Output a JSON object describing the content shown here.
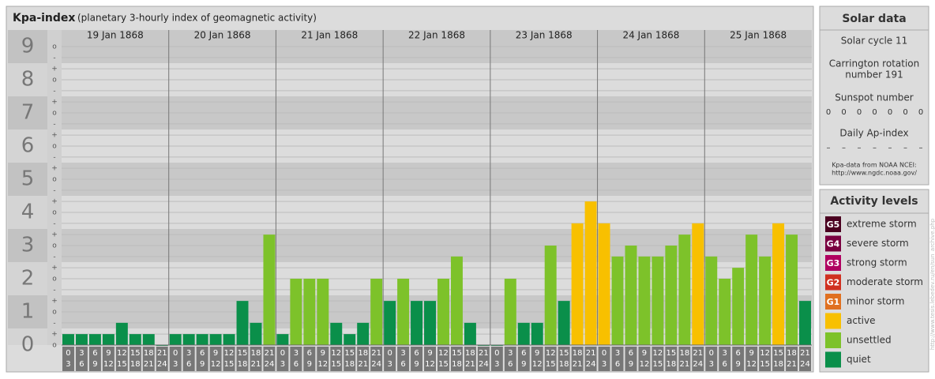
{
  "chart_data": {
    "type": "bar",
    "title": "Kpa-index",
    "subtitle": "(planetary 3-hourly index of geomagnetic activity)",
    "days": [
      "19 Jan 1868",
      "20 Jan 1868",
      "21 Jan 1868",
      "22 Jan 1868",
      "23 Jan 1868",
      "24 Jan 1868",
      "25 Jan 1868"
    ],
    "slot_starts": [
      0,
      3,
      6,
      9,
      12,
      15,
      18,
      21
    ],
    "slot_ends": [
      3,
      6,
      9,
      12,
      15,
      18,
      21,
      24
    ],
    "values": [
      0.33,
      0.33,
      0.33,
      0.33,
      0.67,
      0.33,
      0.33,
      0,
      0.33,
      0.33,
      0.33,
      0.33,
      0.33,
      1.33,
      0.67,
      3.33,
      0.33,
      2,
      2,
      2,
      0.67,
      0.33,
      0.67,
      2,
      1.33,
      2,
      1.33,
      1.33,
      2,
      2.67,
      0.67,
      0,
      0,
      2,
      0.67,
      0.67,
      3,
      1.33,
      3.67,
      4.33,
      3.67,
      2.67,
      3,
      2.67,
      2.67,
      3,
      3.33,
      3.67,
      2.67,
      2,
      2.33,
      3.33,
      2.67,
      3.67,
      3.33,
      1.33
    ],
    "bar_colors": [
      "#0a8f4a",
      "#0a8f4a",
      "#0a8f4a",
      "#0a8f4a",
      "#0a8f4a",
      "#0a8f4a",
      "#0a8f4a",
      "#0a8f4a",
      "#0a8f4a",
      "#0a8f4a",
      "#0a8f4a",
      "#0a8f4a",
      "#0a8f4a",
      "#0a8f4a",
      "#0a8f4a",
      "#7dc22a",
      "#0a8f4a",
      "#7dc22a",
      "#7dc22a",
      "#7dc22a",
      "#0a8f4a",
      "#0a8f4a",
      "#0a8f4a",
      "#7dc22a",
      "#0a8f4a",
      "#7dc22a",
      "#0a8f4a",
      "#0a8f4a",
      "#7dc22a",
      "#7dc22a",
      "#0a8f4a",
      "#0a8f4a",
      "#0a8f4a",
      "#7dc22a",
      "#0a8f4a",
      "#0a8f4a",
      "#7dc22a",
      "#0a8f4a",
      "#f8c000",
      "#f8c000",
      "#f8c000",
      "#7dc22a",
      "#7dc22a",
      "#7dc22a",
      "#7dc22a",
      "#7dc22a",
      "#7dc22a",
      "#f8c000",
      "#7dc22a",
      "#7dc22a",
      "#7dc22a",
      "#7dc22a",
      "#7dc22a",
      "#f8c000",
      "#7dc22a",
      "#0a8f4a"
    ],
    "ylim": [
      0,
      9.5
    ],
    "yticks": [
      0,
      1,
      2,
      3,
      4,
      5,
      6,
      7,
      8,
      9
    ],
    "yminorticks": [
      {
        "value": 0,
        "label": "o"
      },
      {
        "value": 0.33,
        "label": "+"
      },
      {
        "value": 0.67,
        "label": "-"
      },
      {
        "value": 1,
        "label": "o"
      },
      {
        "value": 1.33,
        "label": "+"
      },
      {
        "value": 1.67,
        "label": "-"
      },
      {
        "value": 2,
        "label": "o"
      },
      {
        "value": 2.33,
        "label": "+"
      },
      {
        "value": 2.67,
        "label": "-"
      },
      {
        "value": 3,
        "label": "o"
      },
      {
        "value": 3.33,
        "label": "+"
      },
      {
        "value": 3.67,
        "label": "-"
      },
      {
        "value": 4,
        "label": "o"
      },
      {
        "value": 4.33,
        "label": "+"
      },
      {
        "value": 4.67,
        "label": "-"
      },
      {
        "value": 5,
        "label": "o"
      },
      {
        "value": 5.33,
        "label": "+"
      },
      {
        "value": 5.67,
        "label": "-"
      },
      {
        "value": 6,
        "label": "o"
      },
      {
        "value": 6.33,
        "label": "+"
      },
      {
        "value": 6.67,
        "label": "-"
      },
      {
        "value": 7,
        "label": "o"
      },
      {
        "value": 7.33,
        "label": "+"
      },
      {
        "value": 7.67,
        "label": "-"
      },
      {
        "value": 8,
        "label": "o"
      },
      {
        "value": 8.33,
        "label": "+"
      },
      {
        "value": 8.67,
        "label": "-"
      },
      {
        "value": 9,
        "label": "o"
      }
    ],
    "grid": true
  },
  "solar": {
    "title": "Solar data",
    "cycle": "Solar cycle 11",
    "carrington": [
      "Carrington rotation",
      "number 191"
    ],
    "sunspot_title": "Sunspot number",
    "sunspots": [
      0,
      0,
      0,
      0,
      0,
      0,
      0
    ],
    "ap_title": "Daily Ap-index",
    "ap": [
      "–",
      "–",
      "–",
      "–",
      "–",
      "–",
      "–"
    ],
    "source": [
      "Kpa-data from NOAA NCEI:",
      "http://www.ngdc.noaa.gov/"
    ]
  },
  "legend": {
    "title": "Activity levels",
    "items": [
      {
        "badge": "G5",
        "label": "extreme storm",
        "color": "#4a0020"
      },
      {
        "badge": "G4",
        "label": "severe storm",
        "color": "#7a0040"
      },
      {
        "badge": "G3",
        "label": "strong storm",
        "color": "#b00060"
      },
      {
        "badge": "G2",
        "label": "moderate storm",
        "color": "#d03020"
      },
      {
        "badge": "G1",
        "label": "minor storm",
        "color": "#e07020"
      },
      {
        "label": "active",
        "color": "#f8c000"
      },
      {
        "label": "unsettled",
        "color": "#7dc22a"
      },
      {
        "label": "quiet",
        "color": "#0a8f4a"
      }
    ]
  },
  "credit": "http://www.tesis.lebedev.ru/en/sun_archive.php"
}
